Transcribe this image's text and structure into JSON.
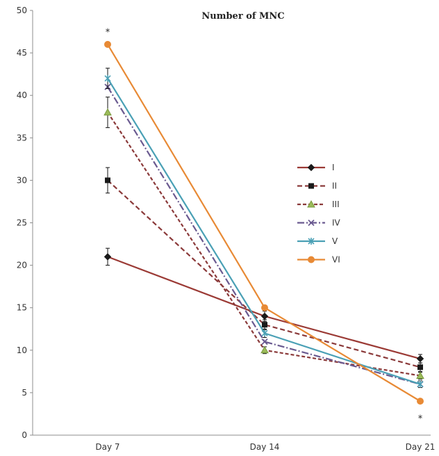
{
  "chart_data": {
    "type": "line",
    "title": "Number  of MNC",
    "xlabel": "",
    "ylabel": "",
    "categories": [
      "Day 7",
      "Day 14",
      "Day 21"
    ],
    "ylim": [
      0,
      50
    ],
    "yticks": [
      0,
      5,
      10,
      15,
      20,
      25,
      30,
      35,
      40,
      45,
      50
    ],
    "grid": false,
    "legend_position": "right",
    "series": [
      {
        "name": "I",
        "values": [
          21,
          14,
          9
        ],
        "errors": [
          1.0,
          0.6,
          0.5
        ],
        "color": "#9b3a35",
        "dash": "solid",
        "marker": "diamond"
      },
      {
        "name": "II",
        "values": [
          30,
          13,
          8
        ],
        "errors": [
          1.5,
          0.6,
          0.5
        ],
        "color": "#8b3a3a",
        "dash": "dash",
        "marker": "square"
      },
      {
        "name": "III",
        "values": [
          38,
          10,
          7
        ],
        "errors": [
          1.8,
          0.4,
          0.4
        ],
        "color": "#8b3a3a",
        "dash": "shortdash",
        "marker": "triangle"
      },
      {
        "name": "IV",
        "values": [
          41,
          11,
          6
        ],
        "errors": [
          0,
          0,
          0
        ],
        "color": "#6a5a90",
        "dash": "dashdot",
        "marker": "x"
      },
      {
        "name": "V",
        "values": [
          42,
          12,
          6
        ],
        "errors": [
          1.2,
          0.5,
          0.4
        ],
        "color": "#4aa0b5",
        "dash": "solid",
        "marker": "star"
      },
      {
        "name": "VI",
        "values": [
          46,
          15,
          4
        ],
        "errors": [
          0,
          0,
          0
        ],
        "color": "#e88a35",
        "dash": "solid",
        "marker": "circle"
      }
    ],
    "annotations": [
      {
        "text": "*",
        "x": "Day 7",
        "y": 47.5
      },
      {
        "text": "*",
        "x": "Day 21",
        "y": 2.0
      }
    ]
  }
}
